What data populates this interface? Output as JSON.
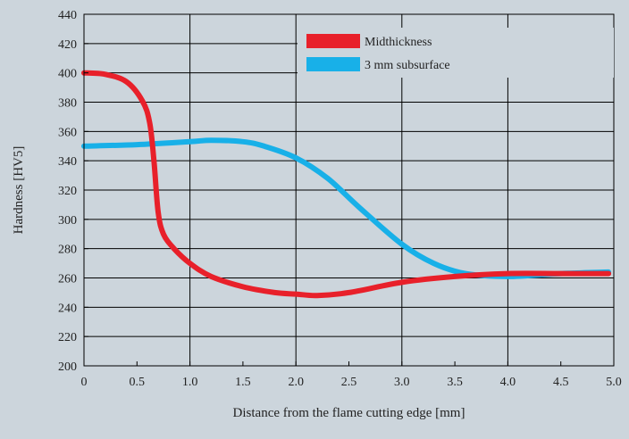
{
  "chart_data": {
    "type": "line",
    "title": "",
    "xlabel": "Distance from the flame cutting edge [mm]",
    "ylabel": "Hardness [HV5]",
    "xlim": [
      0,
      5.0
    ],
    "ylim": [
      200,
      440
    ],
    "xticks": [
      0,
      0.5,
      1.0,
      1.5,
      2.0,
      2.5,
      3.0,
      3.5,
      4.0,
      4.5,
      5.0
    ],
    "xtick_labels": [
      "0",
      "0.5",
      "1.0",
      "1.5",
      "2.0",
      "2.5",
      "3.0",
      "3.5",
      "4.0",
      "4.5",
      "5.0"
    ],
    "yticks": [
      200,
      220,
      240,
      260,
      280,
      300,
      320,
      340,
      360,
      380,
      400,
      420,
      440
    ],
    "ytick_labels": [
      "200",
      "220",
      "240",
      "260",
      "280",
      "300",
      "320",
      "340",
      "360",
      "380",
      "400",
      "420",
      "440"
    ],
    "grid": true,
    "legend_position": "top-right",
    "background": "#ccd5dc",
    "series": [
      {
        "name": "Midthickness",
        "color": "#e8202a",
        "x": [
          0,
          0.2,
          0.4,
          0.55,
          0.62,
          0.66,
          0.7,
          0.75,
          0.85,
          1.0,
          1.2,
          1.5,
          1.8,
          2.0,
          2.2,
          2.5,
          3.0,
          3.5,
          4.0,
          4.5,
          4.95
        ],
        "y": [
          400,
          399,
          394,
          381,
          366,
          340,
          305,
          290,
          280,
          270,
          261,
          254,
          250,
          249,
          248,
          250,
          257,
          261,
          263,
          263,
          263
        ]
      },
      {
        "name": "3 mm subsurface",
        "color": "#18b0e8",
        "x": [
          0,
          0.5,
          1.0,
          1.2,
          1.5,
          1.7,
          2.0,
          2.3,
          2.6,
          3.0,
          3.3,
          3.6,
          4.0,
          4.5,
          4.95
        ],
        "y": [
          350,
          351,
          353,
          354,
          353,
          350,
          342,
          328,
          308,
          283,
          270,
          263,
          261,
          263,
          264
        ]
      }
    ]
  }
}
